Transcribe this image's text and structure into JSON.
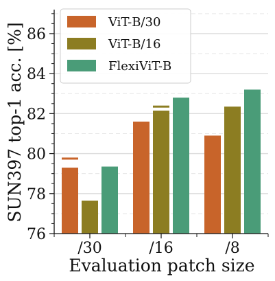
{
  "chart_data": {
    "type": "bar",
    "categories": [
      "/30",
      "/16",
      "/8"
    ],
    "series": [
      {
        "name": "ViT-B/30",
        "color": "#c8642a",
        "values": [
          79.3,
          81.6,
          80.9
        ],
        "markers": [
          79.75,
          null,
          null
        ]
      },
      {
        "name": "ViT-B/16",
        "color": "#8c7d22",
        "values": [
          77.65,
          82.15,
          82.35
        ],
        "markers": [
          null,
          82.35,
          null
        ]
      },
      {
        "name": "FlexiViT-B",
        "color": "#4a9c78",
        "values": [
          79.35,
          82.8,
          83.2
        ],
        "markers": [
          null,
          null,
          null
        ]
      }
    ],
    "xlabel": "Evaluation patch size",
    "ylabel": "SUN397 top-1 acc. [%]",
    "ylim": [
      76,
      87.2
    ],
    "yticks": [
      76,
      78,
      80,
      82,
      84,
      86
    ],
    "grid": true,
    "legend": "top-left"
  }
}
